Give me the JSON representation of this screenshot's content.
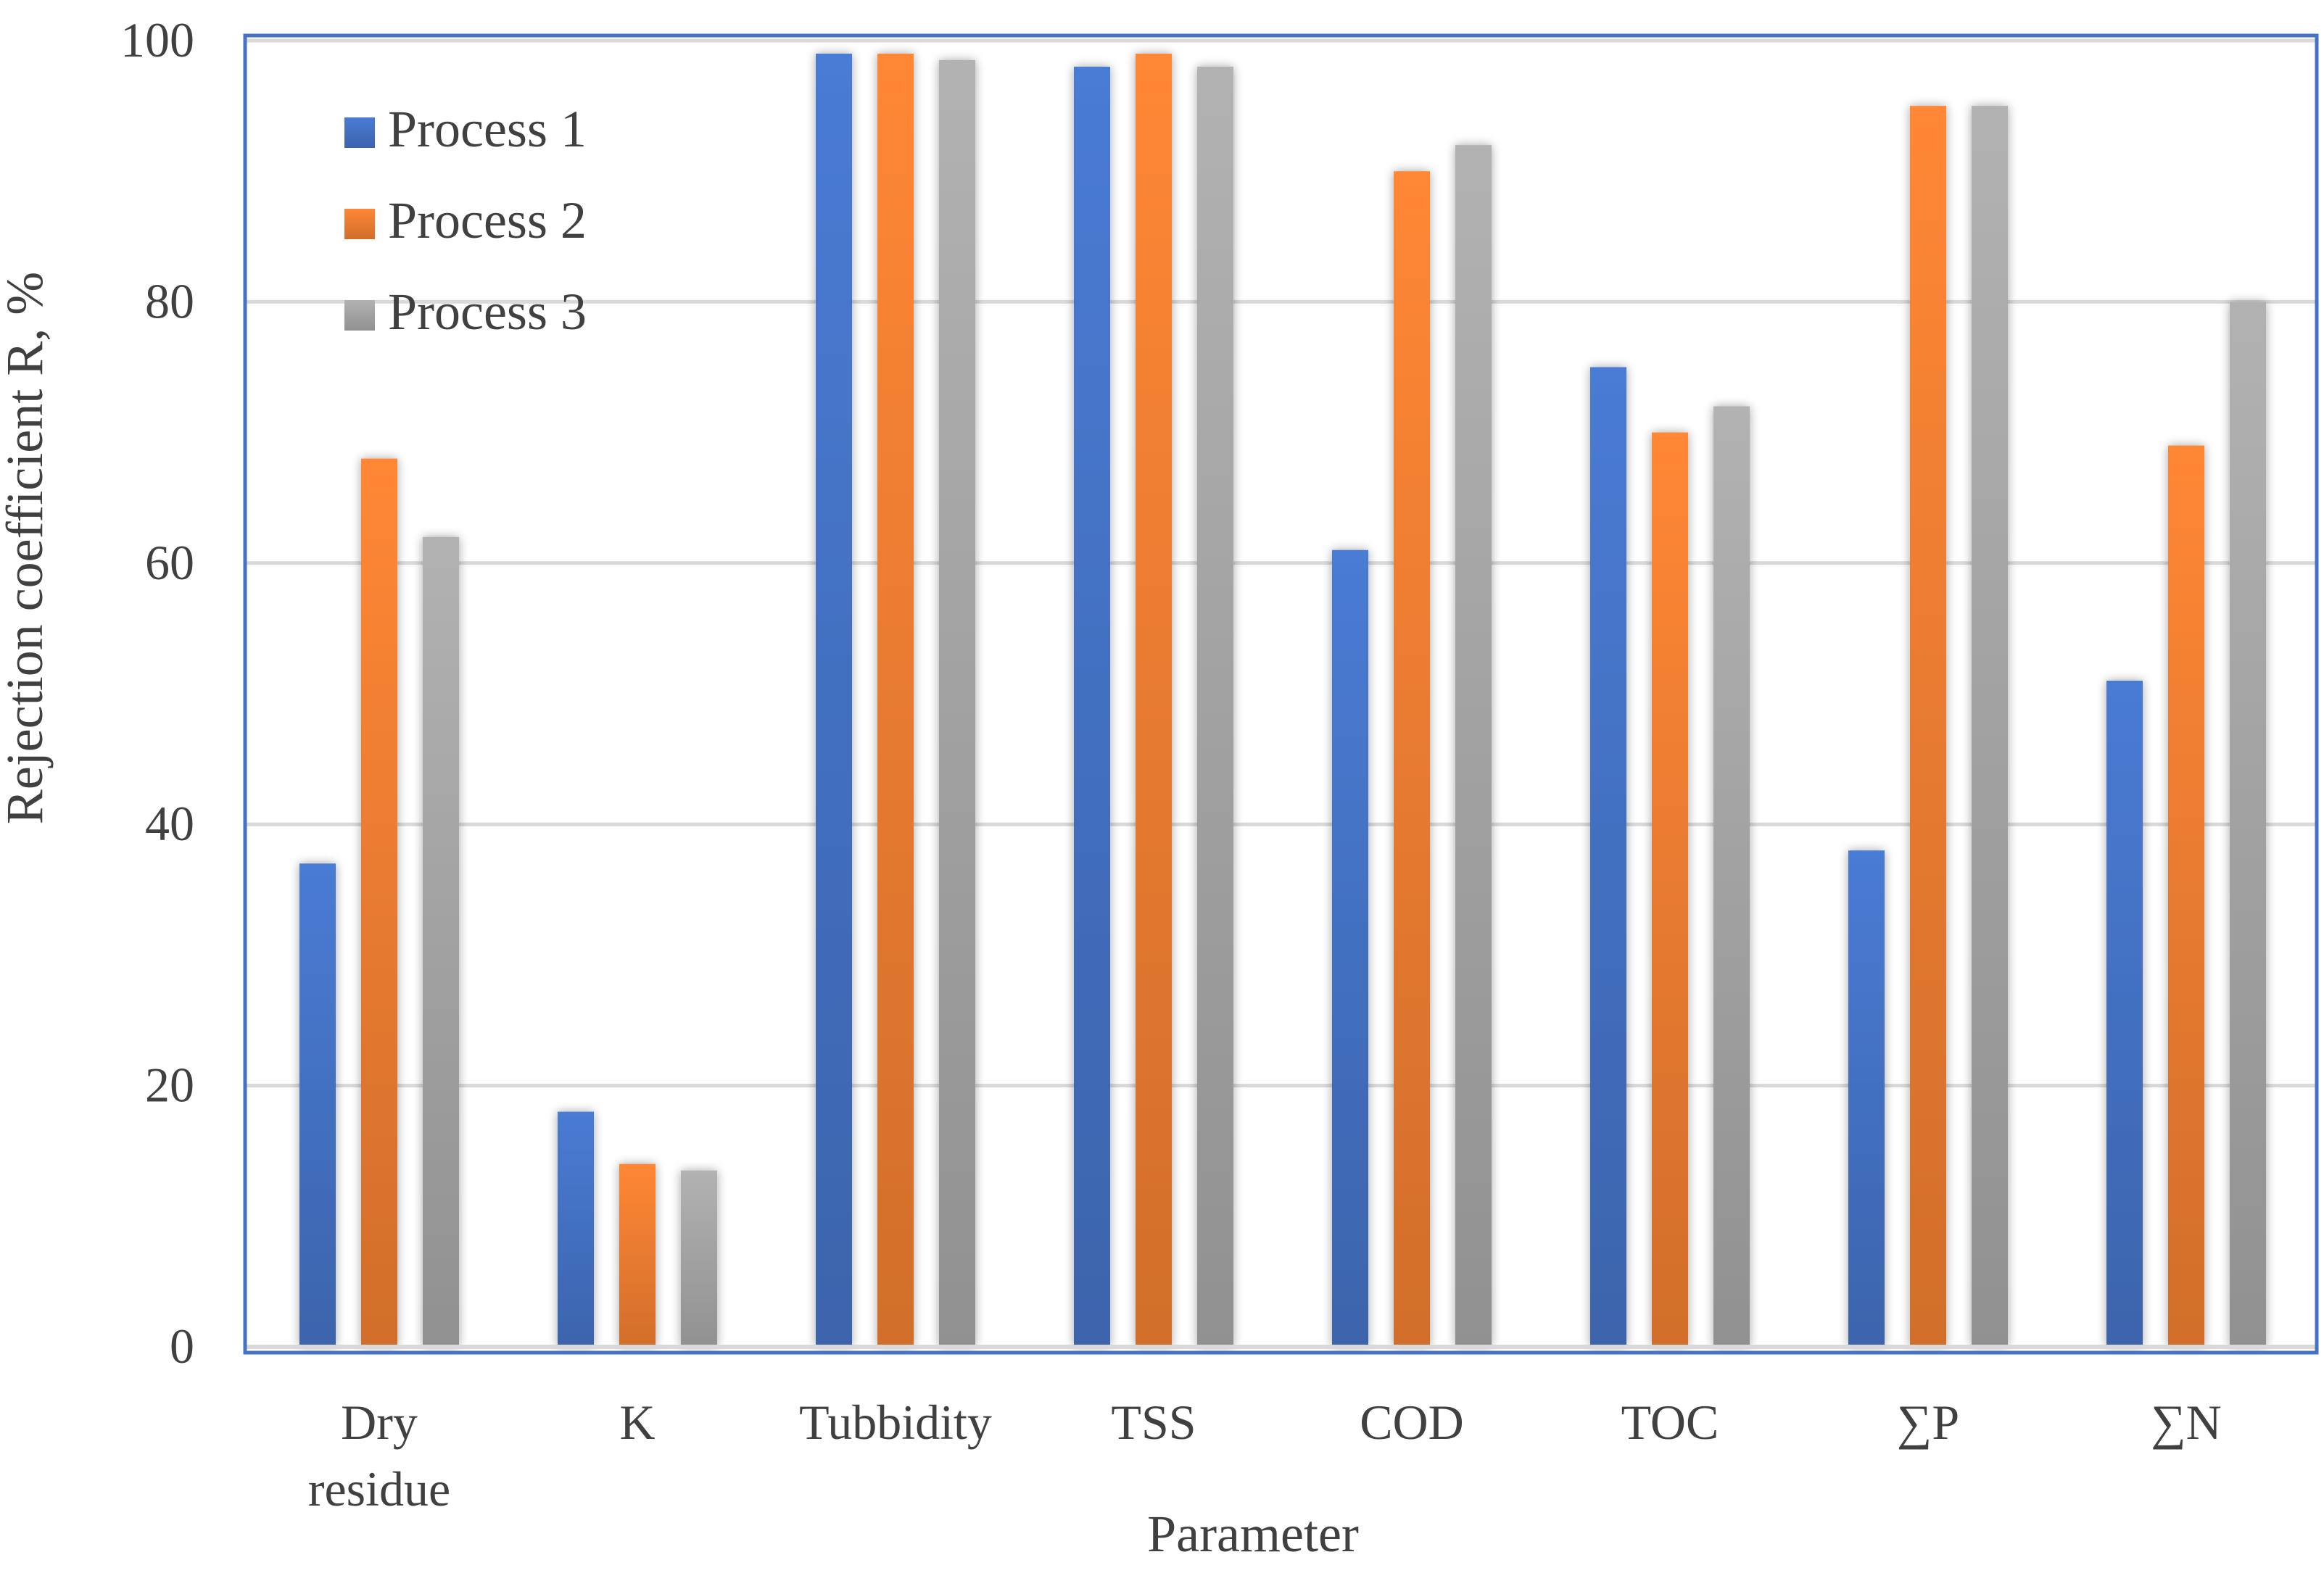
{
  "chart_data": {
    "type": "bar",
    "title": "",
    "xlabel": "Parameter",
    "ylabel": "Rejection coefficient R, %",
    "ylim": [
      0,
      100
    ],
    "yticks": [
      0,
      20,
      40,
      60,
      80,
      100
    ],
    "grid": true,
    "legend_position": "top-left",
    "categories": [
      "Dry residue",
      "K",
      "Tubbidity",
      "TSS",
      "COD",
      "TOC",
      "∑P",
      "∑N"
    ],
    "category_lines": [
      [
        "Dry",
        "residue"
      ],
      [
        "K"
      ],
      [
        "Tubbidity"
      ],
      [
        "TSS"
      ],
      [
        "COD"
      ],
      [
        "TOC"
      ],
      [
        "∑P"
      ],
      [
        "∑N"
      ]
    ],
    "series": [
      {
        "name": "Process 1",
        "color": "#4472C4",
        "values": [
          37,
          18,
          99,
          98,
          61,
          75,
          38,
          51
        ]
      },
      {
        "name": "Process 2",
        "color": "#ED7D31",
        "values": [
          68,
          14,
          99,
          99,
          90,
          70,
          95,
          69
        ]
      },
      {
        "name": "Process 3",
        "color": "#A5A5A5",
        "values": [
          62,
          13.5,
          98.5,
          98,
          92,
          72,
          95,
          80
        ]
      }
    ]
  },
  "colors": {
    "frame": "#4472C4",
    "grid": "#D9D9D9",
    "axis": "#D9D9D9",
    "text": "#404040"
  }
}
